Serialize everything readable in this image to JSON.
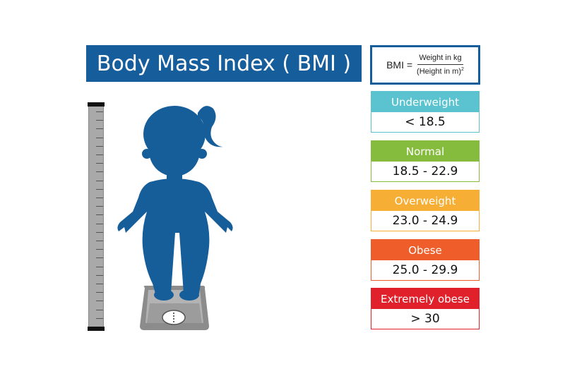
{
  "title": "Body Mass Index ( BMI )",
  "formula": {
    "lhs": "BMI =",
    "numerator": "Weight in kg",
    "denominator": "(Height in m)",
    "exponent": "2"
  },
  "categories": [
    {
      "label": "Underweight",
      "range": "< 18.5",
      "color": "#5ac3cf"
    },
    {
      "label": "Normal",
      "range": "18.5 - 22.9",
      "color": "#86bc3e"
    },
    {
      "label": "Overweight",
      "range": "23.0 - 24.9",
      "color": "#f6ae35"
    },
    {
      "label": "Obese",
      "range": "25.0 - 29.9",
      "color": "#ef5e2a"
    },
    {
      "label": "Extremely obese",
      "range": "> 30",
      "color": "#e0202a"
    }
  ],
  "colors": {
    "brand_blue": "#165d9c",
    "figure_blue": "#155e9a",
    "ruler_gray": "#a9a9a9",
    "scale_gray": "#8c8c8c"
  },
  "illustration": {
    "figure": "girl-silhouette-icon",
    "scale": "bathroom-scale-icon",
    "ruler": "height-ruler-icon"
  }
}
